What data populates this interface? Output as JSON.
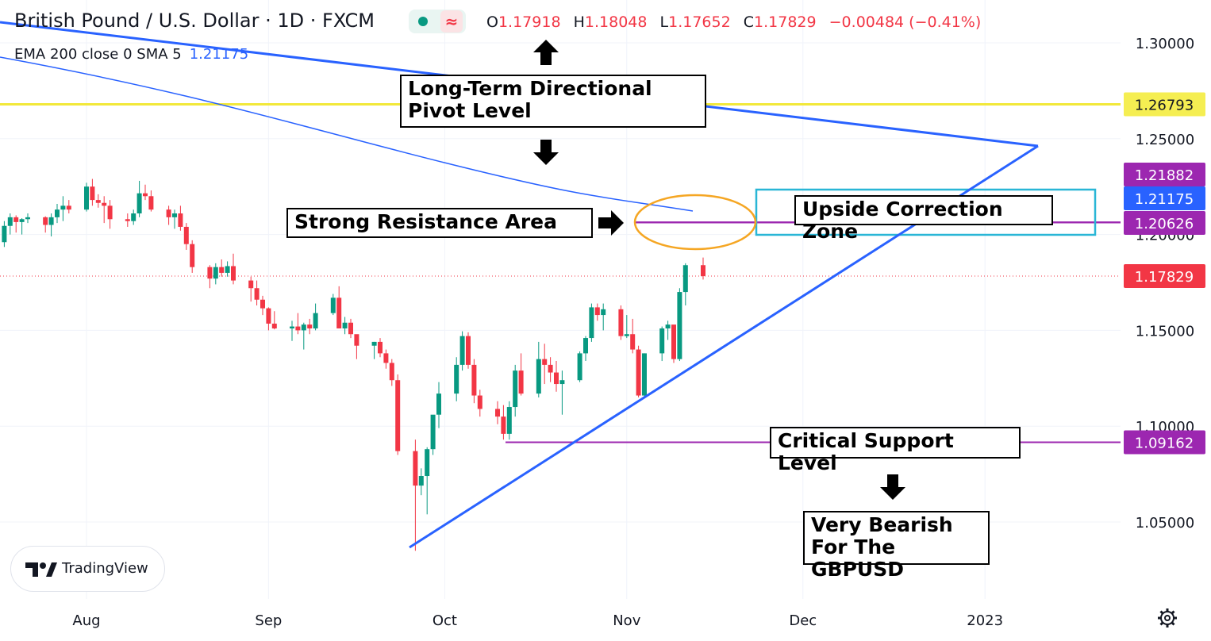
{
  "header": {
    "title": "British Pound / U.S. Dollar · 1D · FXCM",
    "indicator": "EMA 200 close 0 SMA 5",
    "indicator_value": "1.21175",
    "ohlc": {
      "o_label": "O",
      "o": "1.17918",
      "h_label": "H",
      "h": "1.18048",
      "l_label": "L",
      "l": "1.17652",
      "c_label": "C",
      "c": "1.17829",
      "change": "−0.00484 (−0.41%)"
    }
  },
  "badge_icon": "approx-icon",
  "annotations": {
    "pivot": "Long-Term Directional\nPivot Level",
    "resistance": "Strong Resistance Area",
    "correction": "Upside Correction Zone",
    "support": "Critical Support Level",
    "bearish": "Very Bearish\nFor The GBPUSD"
  },
  "logo": {
    "text": "TradingView"
  },
  "colors": {
    "up": "#089981",
    "down": "#f23645",
    "pivot": "#f2e83a",
    "purple": "#9c27b0",
    "trend": "#2962ff",
    "ema": "#2962ff",
    "zone": "#29b6d6",
    "ellipse": "#f5a623"
  },
  "chart_data": {
    "type": "candlestick",
    "title": "British Pound / U.S. Dollar · 1D · FXCM",
    "ylim": [
      1.0,
      1.32
    ],
    "price_ticks": [
      "1.30000",
      "1.25000",
      "1.20000",
      "1.15000",
      "1.10000",
      "1.05000"
    ],
    "time_ticks": [
      "Aug",
      "Sep",
      "Oct",
      "Nov",
      "Dec",
      "2023"
    ],
    "levels": [
      {
        "name": "pivot",
        "value": 1.26793,
        "label": "1.26793"
      },
      {
        "name": "upper-zone",
        "value": 1.21882,
        "label": "1.21882"
      },
      {
        "name": "ema",
        "value": 1.21175,
        "label": "1.21175"
      },
      {
        "name": "lower-zone",
        "value": 1.20626,
        "label": "1.20626"
      },
      {
        "name": "last",
        "value": 1.17829,
        "label": "1.17829"
      },
      {
        "name": "support",
        "value": 1.09162,
        "label": "1.09162"
      }
    ],
    "candles": [
      {
        "date": "2022-07-18",
        "o": 1.196,
        "h": 1.207,
        "l": 1.1935,
        "c": 1.2045
      },
      {
        "date": "2022-07-19",
        "o": 1.2045,
        "h": 1.211,
        "l": 1.2,
        "c": 1.209
      },
      {
        "date": "2022-07-20",
        "o": 1.209,
        "h": 1.21,
        "l": 1.201,
        "c": 1.2065
      },
      {
        "date": "2022-07-21",
        "o": 1.2065,
        "h": 1.2085,
        "l": 1.2,
        "c": 1.208
      },
      {
        "date": "2022-07-22",
        "o": 1.208,
        "h": 1.211,
        "l": 1.206,
        "c": 1.209
      },
      {
        "date": "2022-07-25",
        "o": 1.209,
        "h": 1.2095,
        "l": 1.201,
        "c": 1.205
      },
      {
        "date": "2022-07-26",
        "o": 1.205,
        "h": 1.211,
        "l": 1.199,
        "c": 1.209
      },
      {
        "date": "2022-07-27",
        "o": 1.209,
        "h": 1.216,
        "l": 1.206,
        "c": 1.213
      },
      {
        "date": "2022-07-28",
        "o": 1.213,
        "h": 1.22,
        "l": 1.207,
        "c": 1.215
      },
      {
        "date": "2022-07-29",
        "o": 1.215,
        "h": 1.218,
        "l": 1.211,
        "c": 1.213
      },
      {
        "date": "2022-08-01",
        "o": 1.213,
        "h": 1.227,
        "l": 1.212,
        "c": 1.225
      },
      {
        "date": "2022-08-02",
        "o": 1.225,
        "h": 1.229,
        "l": 1.215,
        "c": 1.218
      },
      {
        "date": "2022-08-03",
        "o": 1.218,
        "h": 1.221,
        "l": 1.214,
        "c": 1.2165
      },
      {
        "date": "2022-08-04",
        "o": 1.2165,
        "h": 1.22,
        "l": 1.206,
        "c": 1.215
      },
      {
        "date": "2022-08-05",
        "o": 1.215,
        "h": 1.218,
        "l": 1.203,
        "c": 1.208
      },
      {
        "date": "2022-08-08",
        "o": 1.208,
        "h": 1.211,
        "l": 1.204,
        "c": 1.207
      },
      {
        "date": "2022-08-09",
        "o": 1.207,
        "h": 1.213,
        "l": 1.205,
        "c": 1.211
      },
      {
        "date": "2022-08-10",
        "o": 1.211,
        "h": 1.228,
        "l": 1.209,
        "c": 1.2215
      },
      {
        "date": "2022-08-11",
        "o": 1.2215,
        "h": 1.226,
        "l": 1.218,
        "c": 1.22
      },
      {
        "date": "2022-08-12",
        "o": 1.22,
        "h": 1.223,
        "l": 1.212,
        "c": 1.213
      },
      {
        "date": "2022-08-15",
        "o": 1.213,
        "h": 1.215,
        "l": 1.205,
        "c": 1.209
      },
      {
        "date": "2022-08-16",
        "o": 1.209,
        "h": 1.213,
        "l": 1.203,
        "c": 1.211
      },
      {
        "date": "2022-08-17",
        "o": 1.211,
        "h": 1.215,
        "l": 1.202,
        "c": 1.204
      },
      {
        "date": "2022-08-18",
        "o": 1.204,
        "h": 1.206,
        "l": 1.192,
        "c": 1.195
      },
      {
        "date": "2022-08-19",
        "o": 1.195,
        "h": 1.197,
        "l": 1.18,
        "c": 1.183
      },
      {
        "date": "2022-08-22",
        "o": 1.183,
        "h": 1.184,
        "l": 1.172,
        "c": 1.177
      },
      {
        "date": "2022-08-23",
        "o": 1.177,
        "h": 1.185,
        "l": 1.174,
        "c": 1.183
      },
      {
        "date": "2022-08-24",
        "o": 1.183,
        "h": 1.187,
        "l": 1.178,
        "c": 1.18
      },
      {
        "date": "2022-08-25",
        "o": 1.18,
        "h": 1.186,
        "l": 1.178,
        "c": 1.1835
      },
      {
        "date": "2022-08-26",
        "o": 1.1835,
        "h": 1.19,
        "l": 1.174,
        "c": 1.176
      },
      {
        "date": "2022-08-29",
        "o": 1.176,
        "h": 1.178,
        "l": 1.165,
        "c": 1.172
      },
      {
        "date": "2022-08-30",
        "o": 1.172,
        "h": 1.176,
        "l": 1.163,
        "c": 1.166
      },
      {
        "date": "2022-08-31",
        "o": 1.166,
        "h": 1.168,
        "l": 1.158,
        "c": 1.1615
      },
      {
        "date": "2022-09-01",
        "o": 1.1615,
        "h": 1.162,
        "l": 1.15,
        "c": 1.1535
      },
      {
        "date": "2022-09-02",
        "o": 1.1535,
        "h": 1.16,
        "l": 1.1505,
        "c": 1.151
      },
      {
        "date": "2022-09-05",
        "o": 1.151,
        "h": 1.155,
        "l": 1.1445,
        "c": 1.152
      },
      {
        "date": "2022-09-06",
        "o": 1.152,
        "h": 1.159,
        "l": 1.148,
        "c": 1.15
      },
      {
        "date": "2022-09-07",
        "o": 1.15,
        "h": 1.154,
        "l": 1.14,
        "c": 1.153
      },
      {
        "date": "2022-09-08",
        "o": 1.153,
        "h": 1.156,
        "l": 1.148,
        "c": 1.151
      },
      {
        "date": "2022-09-09",
        "o": 1.151,
        "h": 1.164,
        "l": 1.15,
        "c": 1.159
      },
      {
        "date": "2022-09-12",
        "o": 1.159,
        "h": 1.169,
        "l": 1.158,
        "c": 1.167
      },
      {
        "date": "2022-09-13",
        "o": 1.167,
        "h": 1.173,
        "l": 1.151,
        "c": 1.151
      },
      {
        "date": "2022-09-14",
        "o": 1.151,
        "h": 1.157,
        "l": 1.148,
        "c": 1.154
      },
      {
        "date": "2022-09-15",
        "o": 1.154,
        "h": 1.156,
        "l": 1.146,
        "c": 1.148
      },
      {
        "date": "2022-09-16",
        "o": 1.148,
        "h": 1.147,
        "l": 1.135,
        "c": 1.142
      },
      {
        "date": "2022-09-19",
        "o": 1.142,
        "h": 1.144,
        "l": 1.135,
        "c": 1.144
      },
      {
        "date": "2022-09-20",
        "o": 1.144,
        "h": 1.146,
        "l": 1.136,
        "c": 1.138
      },
      {
        "date": "2022-09-21",
        "o": 1.138,
        "h": 1.14,
        "l": 1.13,
        "c": 1.133
      },
      {
        "date": "2022-09-22",
        "o": 1.133,
        "h": 1.135,
        "l": 1.121,
        "c": 1.124
      },
      {
        "date": "2022-09-23",
        "o": 1.124,
        "h": 1.127,
        "l": 1.085,
        "c": 1.087
      },
      {
        "date": "2022-09-26",
        "o": 1.087,
        "h": 1.093,
        "l": 1.035,
        "c": 1.069
      },
      {
        "date": "2022-09-27",
        "o": 1.069,
        "h": 1.078,
        "l": 1.064,
        "c": 1.074
      },
      {
        "date": "2022-09-28",
        "o": 1.074,
        "h": 1.089,
        "l": 1.054,
        "c": 1.088
      },
      {
        "date": "2022-09-29",
        "o": 1.088,
        "h": 1.105,
        "l": 1.085,
        "c": 1.106
      },
      {
        "date": "2022-09-30",
        "o": 1.106,
        "h": 1.123,
        "l": 1.099,
        "c": 1.117
      },
      {
        "date": "2022-10-03",
        "o": 1.117,
        "h": 1.136,
        "l": 1.113,
        "c": 1.132
      },
      {
        "date": "2022-10-04",
        "o": 1.132,
        "h": 1.1495,
        "l": 1.129,
        "c": 1.147
      },
      {
        "date": "2022-10-05",
        "o": 1.147,
        "h": 1.149,
        "l": 1.13,
        "c": 1.132
      },
      {
        "date": "2022-10-06",
        "o": 1.132,
        "h": 1.135,
        "l": 1.112,
        "c": 1.116
      },
      {
        "date": "2022-10-07",
        "o": 1.116,
        "h": 1.119,
        "l": 1.105,
        "c": 1.109
      },
      {
        "date": "2022-10-10",
        "o": 1.109,
        "h": 1.113,
        "l": 1.101,
        "c": 1.105
      },
      {
        "date": "2022-10-11",
        "o": 1.105,
        "h": 1.111,
        "l": 1.093,
        "c": 1.096
      },
      {
        "date": "2022-10-12",
        "o": 1.096,
        "h": 1.113,
        "l": 1.093,
        "c": 1.11
      },
      {
        "date": "2022-10-13",
        "o": 1.11,
        "h": 1.132,
        "l": 1.105,
        "c": 1.129
      },
      {
        "date": "2022-10-14",
        "o": 1.129,
        "h": 1.138,
        "l": 1.116,
        "c": 1.117
      },
      {
        "date": "2022-10-17",
        "o": 1.117,
        "h": 1.144,
        "l": 1.115,
        "c": 1.135
      },
      {
        "date": "2022-10-18",
        "o": 1.135,
        "h": 1.143,
        "l": 1.122,
        "c": 1.132
      },
      {
        "date": "2022-10-19",
        "o": 1.132,
        "h": 1.136,
        "l": 1.123,
        "c": 1.128
      },
      {
        "date": "2022-10-20",
        "o": 1.128,
        "h": 1.134,
        "l": 1.118,
        "c": 1.122
      },
      {
        "date": "2022-10-21",
        "o": 1.122,
        "h": 1.129,
        "l": 1.106,
        "c": 1.124
      },
      {
        "date": "2022-10-24",
        "o": 1.124,
        "h": 1.139,
        "l": 1.123,
        "c": 1.138
      },
      {
        "date": "2022-10-25",
        "o": 1.138,
        "h": 1.147,
        "l": 1.134,
        "c": 1.146
      },
      {
        "date": "2022-10-26",
        "o": 1.146,
        "h": 1.164,
        "l": 1.144,
        "c": 1.162
      },
      {
        "date": "2022-10-27",
        "o": 1.162,
        "h": 1.164,
        "l": 1.155,
        "c": 1.158
      },
      {
        "date": "2022-10-28",
        "o": 1.158,
        "h": 1.164,
        "l": 1.15,
        "c": 1.161
      },
      {
        "date": "2022-10-31",
        "o": 1.161,
        "h": 1.163,
        "l": 1.145,
        "c": 1.147
      },
      {
        "date": "2022-11-01",
        "o": 1.147,
        "h": 1.158,
        "l": 1.146,
        "c": 1.148
      },
      {
        "date": "2022-11-02",
        "o": 1.148,
        "h": 1.156,
        "l": 1.138,
        "c": 1.14
      },
      {
        "date": "2022-11-03",
        "o": 1.14,
        "h": 1.142,
        "l": 1.115,
        "c": 1.116
      },
      {
        "date": "2022-11-04",
        "o": 1.116,
        "h": 1.138,
        "l": 1.115,
        "c": 1.138
      },
      {
        "date": "2022-11-07",
        "o": 1.138,
        "h": 1.152,
        "l": 1.134,
        "c": 1.151
      },
      {
        "date": "2022-11-08",
        "o": 1.151,
        "h": 1.155,
        "l": 1.145,
        "c": 1.153
      },
      {
        "date": "2022-11-09",
        "o": 1.153,
        "h": 1.152,
        "l": 1.133,
        "c": 1.135
      },
      {
        "date": "2022-11-10",
        "o": 1.135,
        "h": 1.172,
        "l": 1.134,
        "c": 1.17
      },
      {
        "date": "2022-11-11",
        "o": 1.17,
        "h": 1.185,
        "l": 1.163,
        "c": 1.184
      },
      {
        "date": "2022-11-14",
        "o": 1.184,
        "h": 1.188,
        "l": 1.1765,
        "c": 1.1783
      }
    ]
  }
}
